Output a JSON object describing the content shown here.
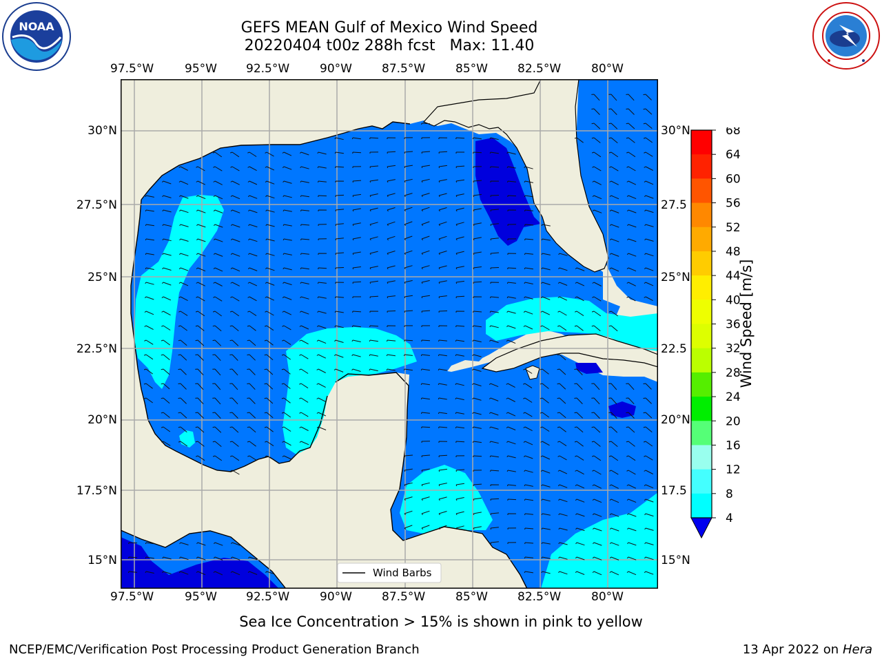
{
  "header": {
    "title_line1": "GEFS MEAN Gulf of Mexico Wind Speed",
    "title_line2": "20220404 t00z 288h fcst   Max: 11.40"
  },
  "logos": {
    "left": {
      "name": "noaa-logo",
      "text": "NOAA",
      "ring_text": "NATIONAL OCEANIC AND ATMOSPHERIC ADMINISTRATION · U.S. DEPARTMENT OF COMMERCE"
    },
    "right": {
      "name": "nws-logo",
      "ring_text": "NATIONAL WEATHER SERVICE"
    }
  },
  "map": {
    "lon_labels": [
      "97.5°W",
      "95°W",
      "92.5°W",
      "90°W",
      "87.5°W",
      "85°W",
      "82.5°W",
      "80°W"
    ],
    "lat_labels_left": [
      "30°N",
      "27.5°N",
      "25°N",
      "22.5°N",
      "20°N",
      "17.5°N",
      "15°N"
    ],
    "lat_labels_right": [
      "30°N",
      "27.5",
      "25°N",
      "22.5",
      "20°N",
      "17.5",
      "15°N"
    ],
    "legend_label": "Wind Barbs",
    "colors": {
      "land": "#efeedd",
      "ocean_4_8": "#0077ff",
      "ocean_8_12": "#00ffff",
      "ocean_below_4": "#0000dd"
    }
  },
  "colorbar": {
    "label": "Wind Speed [m/s]",
    "ticks": [
      "68",
      "64",
      "60",
      "56",
      "52",
      "48",
      "44",
      "40",
      "36",
      "32",
      "28",
      "24",
      "20",
      "16",
      "12",
      "8",
      "4"
    ],
    "colors": [
      "#ff0000",
      "#ff2200",
      "#ff5500",
      "#ff8800",
      "#ffaa00",
      "#ffcc00",
      "#ffee00",
      "#eeff00",
      "#ddff00",
      "#bbff00",
      "#55ee00",
      "#00ee00",
      "#55ff77",
      "#99ffee",
      "#44ffff",
      "#00ffff",
      "#0077ff"
    ],
    "under_color": "#0000ee"
  },
  "footer": {
    "note": "Sea Ice Concentration > 15% is shown in pink to yellow",
    "credit": "NCEP/EMC/Verification Post Processing Product Generation Branch",
    "date_text": "13 Apr 2022 on ",
    "machine": "Hera"
  }
}
